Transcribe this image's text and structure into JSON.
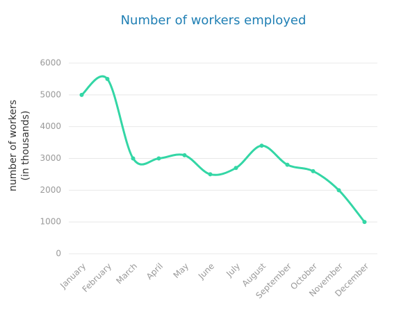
{
  "chart_data": {
    "type": "line",
    "title": "Number of workers employed",
    "ylabel": [
      "number of workers",
      "(in thousands)"
    ],
    "categories": [
      "January",
      "February",
      "March",
      "April",
      "May",
      "June",
      "July",
      "August",
      "September",
      "October",
      "November",
      "December"
    ],
    "values": [
      5000,
      5500,
      3000,
      3000,
      3100,
      2500,
      2700,
      3400,
      2800,
      2600,
      2000,
      1000
    ],
    "color": "#33d6a5",
    "ylim": [
      0,
      6000
    ],
    "yticks": [
      0,
      1000,
      2000,
      3000,
      4000,
      5000,
      6000
    ],
    "grid": true,
    "smooth": true
  }
}
